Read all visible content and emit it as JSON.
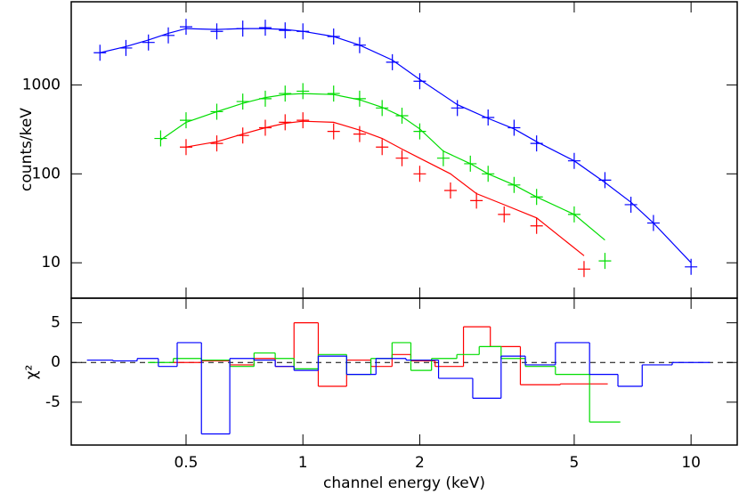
{
  "chart_data": [
    {
      "type": "spectrum",
      "ylabel": "counts/keV",
      "xlog": true,
      "ylog": true,
      "xlim": [
        0.253,
        13.15
      ],
      "xticks": [
        0.5,
        1,
        2,
        5,
        10
      ],
      "ylim": [
        4,
        8600
      ],
      "yticks": [
        10,
        100,
        1000
      ],
      "series": [
        {
          "color": "#ff0000",
          "x": [
            0.5,
            0.6,
            0.7,
            0.8,
            0.9,
            1.0,
            1.2,
            1.4,
            1.6,
            1.8,
            2.0,
            2.4,
            2.8,
            3.3,
            4.0,
            5.3
          ],
          "values": [
            200,
            220,
            270,
            330,
            380,
            400,
            300,
            280,
            200,
            150,
            100,
            65,
            50,
            35,
            26,
            8.5
          ],
          "model": [
            200,
            230,
            280,
            330,
            370,
            390,
            380,
            310,
            250,
            190,
            150,
            100,
            60,
            45,
            32,
            12
          ]
        },
        {
          "color": "#00dd00",
          "x": [
            0.43,
            0.5,
            0.6,
            0.7,
            0.8,
            0.9,
            1.0,
            1.2,
            1.4,
            1.6,
            1.8,
            2.0,
            2.3,
            2.7,
            3.0,
            3.5,
            4.0,
            5.0,
            6.0
          ],
          "values": [
            250,
            400,
            500,
            650,
            700,
            800,
            850,
            800,
            700,
            550,
            450,
            300,
            150,
            130,
            100,
            75,
            55,
            35,
            10.5
          ],
          "model": [
            240,
            380,
            500,
            620,
            720,
            780,
            800,
            780,
            680,
            560,
            440,
            320,
            180,
            130,
            100,
            75,
            55,
            35,
            18
          ]
        },
        {
          "color": "#0000ff",
          "x": [
            0.3,
            0.35,
            0.4,
            0.45,
            0.5,
            0.6,
            0.7,
            0.8,
            0.9,
            1.0,
            1.2,
            1.4,
            1.7,
            2.0,
            2.5,
            3.0,
            3.5,
            4.0,
            5.0,
            6.0,
            7.0,
            8.0,
            10.0
          ],
          "values": [
            2300,
            2600,
            3000,
            3600,
            4500,
            4000,
            4300,
            4400,
            4100,
            4000,
            3500,
            2800,
            1800,
            1100,
            550,
            430,
            330,
            220,
            140,
            85,
            45,
            28,
            9
          ],
          "model": [
            2300,
            2700,
            3200,
            3800,
            4300,
            4200,
            4300,
            4300,
            4200,
            4000,
            3500,
            2800,
            1900,
            1150,
            600,
            420,
            320,
            230,
            140,
            80,
            48,
            28,
            10
          ]
        }
      ]
    },
    {
      "type": "residual",
      "ylabel": "χ²",
      "xlabel": "channel energy (keV)",
      "xlog": true,
      "xlim": [
        0.253,
        13.15
      ],
      "xticks": [
        0.5,
        1,
        2,
        5,
        10
      ],
      "ylim": [
        -10.4,
        8.1
      ],
      "yticks": [
        -5,
        0,
        5
      ],
      "series": [
        {
          "color": "#ff0000",
          "x": [
            0.5,
            0.6,
            0.7,
            0.8,
            0.9,
            1.0,
            1.2,
            1.4,
            1.6,
            1.8,
            2.0,
            2.4,
            2.8,
            3.3,
            4.0,
            5.3
          ],
          "values": [
            0,
            0.2,
            -0.3,
            0.5,
            -0.5,
            5,
            -3,
            0.3,
            -0.5,
            1,
            0.2,
            -0.5,
            4.5,
            2,
            -2.8,
            -2.7
          ]
        },
        {
          "color": "#00dd00",
          "x": [
            0.43,
            0.5,
            0.6,
            0.7,
            0.8,
            0.9,
            1.0,
            1.2,
            1.4,
            1.6,
            1.8,
            2.0,
            2.3,
            2.7,
            3.0,
            3.5,
            4.0,
            5.0,
            6.0
          ],
          "values": [
            0,
            0.5,
            0.3,
            -0.5,
            1.2,
            0.5,
            -0.8,
            1,
            -1.5,
            0.5,
            2.5,
            -1,
            0.5,
            1,
            2,
            0.5,
            -0.5,
            -1.5,
            -7.5
          ]
        },
        {
          "color": "#0000ff",
          "x": [
            0.3,
            0.35,
            0.4,
            0.45,
            0.5,
            0.6,
            0.7,
            0.8,
            0.9,
            1.0,
            1.2,
            1.4,
            1.7,
            2.0,
            2.5,
            3.0,
            3.5,
            4.0,
            5.0,
            6.0,
            7.0,
            8.0,
            10.0
          ],
          "values": [
            0.3,
            0.2,
            0.5,
            -0.5,
            2.5,
            -9,
            0.5,
            0.3,
            -0.5,
            -1,
            0.8,
            -1.5,
            0.5,
            0.3,
            -2,
            -4.5,
            0.8,
            -0.3,
            2.5,
            -1.5,
            -3,
            -0.3,
            0
          ]
        }
      ]
    }
  ]
}
